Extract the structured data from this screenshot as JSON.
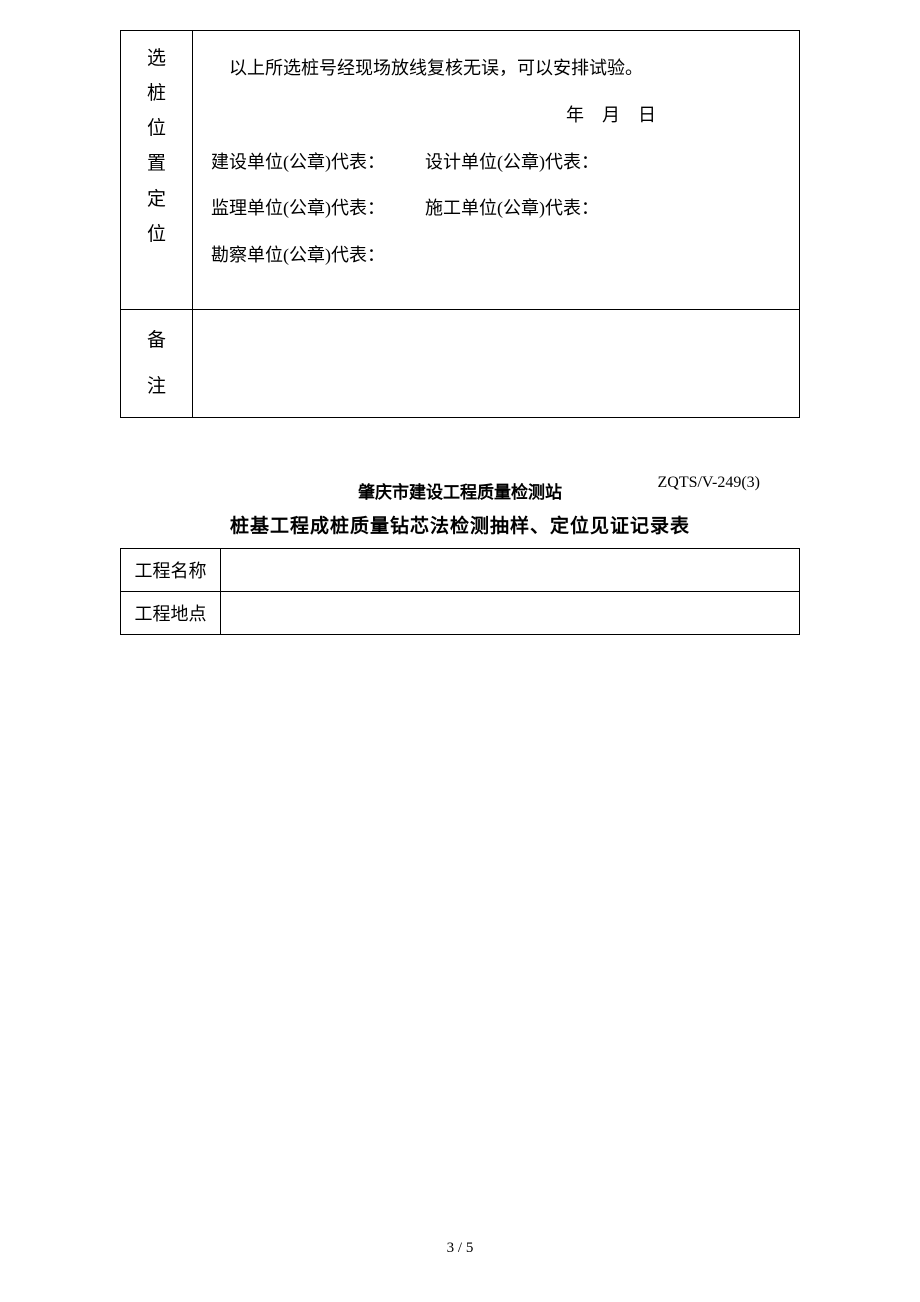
{
  "table1": {
    "row1_label": "选\n桩\n位\n置\n定\n位",
    "content": {
      "confirm_text": "以上所选桩号经现场放线复核无误，可以安排试验。",
      "date_text": "年　月　日",
      "sig1": "建设单位(公章)代表：",
      "sig2": "设计单位(公章)代表：",
      "sig3": "监理单位(公章)代表：",
      "sig4": "施工单位(公章)代表：",
      "sig5": "勘察单位(公章)代表："
    },
    "row2_label_a": "备",
    "row2_label_b": "注",
    "row2_content": ""
  },
  "header": {
    "org": "肇庆市建设工程质量检测站",
    "code": "ZQTS/V-249(3)",
    "title": "桩基工程成桩质量钻芯法检测抽样、定位见证记录表"
  },
  "table2": {
    "row1_label": "工程名称",
    "row1_value": "",
    "row2_label": "工程地点",
    "row2_value": ""
  },
  "pagenum": "3 / 5"
}
